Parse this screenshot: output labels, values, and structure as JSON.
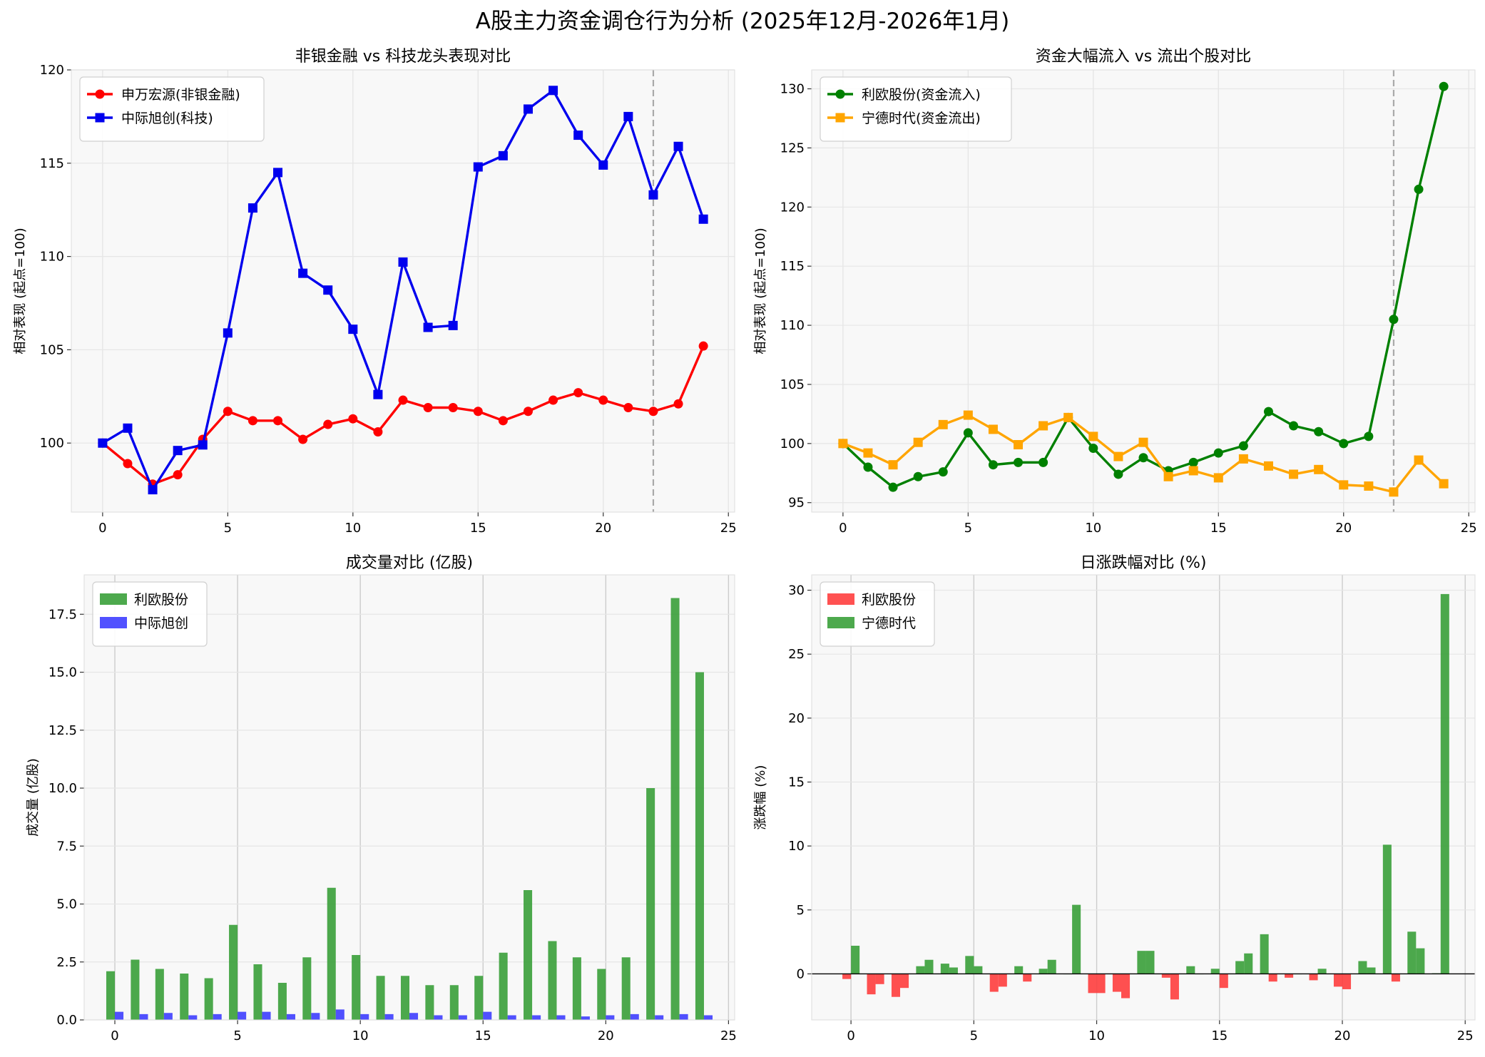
{
  "figure_title": "A股主力资金调仓行为分析 (2025年12月-2026年1月)",
  "colors": {
    "red": "#ff0000",
    "blue": "#0000ee",
    "green": "#008000",
    "orange": "#ffa500",
    "bar_green": "#2e9a2e",
    "bar_blue": "#3333ff",
    "bar_red": "#ff3333",
    "ref_line": "#aaaaaa",
    "plot_bg": "#f8f8f8"
  },
  "chart_data": [
    {
      "id": "chart1",
      "type": "line",
      "title": "非银金融 vs 科技龙头表现对比",
      "xlabel": "",
      "ylabel": "相对表现 (起点=100)",
      "xlim": [
        -1.25,
        25.25
      ],
      "ylim": [
        96.3,
        120
      ],
      "xticks": [
        0,
        5,
        10,
        15,
        20,
        25
      ],
      "yticks": [
        100,
        105,
        110,
        115,
        120
      ],
      "grid": true,
      "legend_position": "top-left",
      "vline_x": 22,
      "x": [
        0,
        1,
        2,
        3,
        4,
        5,
        6,
        7,
        8,
        9,
        10,
        11,
        12,
        13,
        14,
        15,
        16,
        17,
        18,
        19,
        20,
        21,
        22,
        23,
        24
      ],
      "series": [
        {
          "name": "申万宏源(非银金融)",
          "color": "#ff0000",
          "marker": "circle",
          "values": [
            100.0,
            98.9,
            97.8,
            98.3,
            100.2,
            101.7,
            101.2,
            101.2,
            100.2,
            101.0,
            101.3,
            100.6,
            102.3,
            101.9,
            101.9,
            101.7,
            101.2,
            101.7,
            102.3,
            102.7,
            102.3,
            101.9,
            101.7,
            102.1,
            105.2
          ]
        },
        {
          "name": "中际旭创(科技)",
          "color": "#0000ee",
          "marker": "square",
          "values": [
            100.0,
            100.8,
            97.5,
            99.6,
            99.9,
            105.9,
            112.6,
            114.5,
            109.1,
            108.2,
            106.1,
            102.6,
            109.7,
            106.2,
            106.3,
            114.8,
            115.4,
            117.9,
            118.9,
            116.5,
            114.9,
            117.5,
            113.3,
            115.9,
            112.0
          ]
        }
      ]
    },
    {
      "id": "chart2",
      "type": "line",
      "title": "资金大幅流入 vs 流出个股对比",
      "xlabel": "",
      "ylabel": "相对表现 (起点=100)",
      "xlim": [
        -1.25,
        25.25
      ],
      "ylim": [
        94.2,
        131.6
      ],
      "xticks": [
        0,
        5,
        10,
        15,
        20,
        25
      ],
      "yticks": [
        95,
        100,
        105,
        110,
        115,
        120,
        125,
        130
      ],
      "grid": true,
      "legend_position": "top-left",
      "vline_x": 22,
      "x": [
        0,
        1,
        2,
        3,
        4,
        5,
        6,
        7,
        8,
        9,
        10,
        11,
        12,
        13,
        14,
        15,
        16,
        17,
        18,
        19,
        20,
        21,
        22,
        23,
        24
      ],
      "series": [
        {
          "name": "利欧股份(资金流入)",
          "color": "#008000",
          "marker": "circle",
          "values": [
            100.0,
            98.0,
            96.3,
            97.2,
            97.6,
            100.9,
            98.2,
            98.4,
            98.4,
            102.2,
            99.6,
            97.4,
            98.8,
            97.7,
            98.4,
            99.2,
            99.8,
            102.7,
            101.5,
            101.0,
            100.0,
            100.6,
            110.5,
            121.5,
            130.2
          ]
        },
        {
          "name": "宁德时代(资金流出)",
          "color": "#ffa500",
          "marker": "square",
          "values": [
            100.0,
            99.2,
            98.2,
            100.1,
            101.6,
            102.4,
            101.2,
            99.9,
            101.5,
            102.2,
            100.6,
            98.9,
            100.1,
            97.2,
            97.7,
            97.1,
            98.7,
            98.1,
            97.4,
            97.8,
            96.5,
            96.4,
            95.9,
            98.6,
            96.6
          ]
        }
      ]
    },
    {
      "id": "chart3",
      "type": "bar",
      "title": "成交量对比 (亿股)",
      "xlabel": "",
      "ylabel": "成交量 (亿股)",
      "xlim": [
        -1.25,
        25.25
      ],
      "ylim": [
        0,
        19.2
      ],
      "xticks": [
        0,
        5,
        10,
        15,
        20,
        25
      ],
      "yticks": [
        0.0,
        2.5,
        5.0,
        7.5,
        10.0,
        12.5,
        15.0,
        17.5
      ],
      "ytick_labels": [
        "0.0",
        "2.5",
        "5.0",
        "7.5",
        "10.0",
        "12.5",
        "15.0",
        "17.5"
      ],
      "grid": true,
      "legend_position": "top-left",
      "x": [
        0,
        1,
        2,
        3,
        4,
        5,
        6,
        7,
        8,
        9,
        10,
        11,
        12,
        13,
        14,
        15,
        16,
        17,
        18,
        19,
        20,
        21,
        22,
        23,
        24
      ],
      "series": [
        {
          "name": "利欧股份",
          "color": "#2e9a2e",
          "offset": -0.175,
          "values": [
            2.1,
            2.6,
            2.2,
            2.0,
            1.8,
            4.1,
            2.4,
            1.6,
            2.7,
            5.7,
            2.8,
            1.9,
            1.9,
            1.5,
            1.5,
            1.9,
            2.9,
            5.6,
            3.4,
            2.7,
            2.2,
            2.7,
            10.0,
            18.2,
            15.0
          ]
        },
        {
          "name": "中际旭创",
          "color": "#3333ff",
          "offset": 0.175,
          "values": [
            0.35,
            0.25,
            0.3,
            0.2,
            0.25,
            0.35,
            0.35,
            0.25,
            0.3,
            0.45,
            0.25,
            0.25,
            0.3,
            0.2,
            0.2,
            0.35,
            0.2,
            0.2,
            0.2,
            0.15,
            0.2,
            0.25,
            0.2,
            0.25,
            0.2
          ]
        }
      ]
    },
    {
      "id": "chart4",
      "type": "bar",
      "title": "日涨跌幅对比 (%)",
      "xlabel": "",
      "ylabel": "涨跌幅 (%)",
      "xlim": [
        -1.6,
        25.4
      ],
      "ylim": [
        -3.6,
        31.2
      ],
      "xticks": [
        0,
        5,
        10,
        15,
        20,
        25
      ],
      "yticks": [
        0,
        5,
        10,
        15,
        20,
        25,
        30
      ],
      "grid": true,
      "legend_position": "top-left",
      "zero_line": true,
      "x": [
        0,
        1,
        2,
        3,
        4,
        5,
        6,
        7,
        8,
        9,
        10,
        11,
        12,
        13,
        14,
        15,
        16,
        17,
        18,
        19,
        20,
        21,
        22,
        23,
        24
      ],
      "series": [
        {
          "name": "利欧股份",
          "color": "#ff3333",
          "legend_color": "#ff3333",
          "values": [
            -0.4,
            -1.6,
            -1.8,
            0.6,
            0.8,
            1.4,
            -1.4,
            0.6,
            0.4,
            0.0,
            -1.5,
            -1.4,
            1.8,
            -0.3,
            0.6,
            0.4,
            1.0,
            3.1,
            -0.3,
            -0.5,
            -1.0,
            1.0,
            10.1,
            3.3,
            0.05
          ]
        },
        {
          "name": "宁德时代",
          "color": "#2e9a2e",
          "legend_color": "#2e9a2e",
          "values": [
            2.2,
            -0.8,
            -1.1,
            1.1,
            0.5,
            0.6,
            -1.0,
            -0.6,
            1.1,
            5.4,
            -1.5,
            -1.9,
            1.8,
            -2.0,
            0.0,
            -1.1,
            1.6,
            -0.6,
            0.0,
            0.4,
            -1.2,
            0.5,
            -0.6,
            2.0,
            29.7
          ]
        }
      ]
    }
  ]
}
